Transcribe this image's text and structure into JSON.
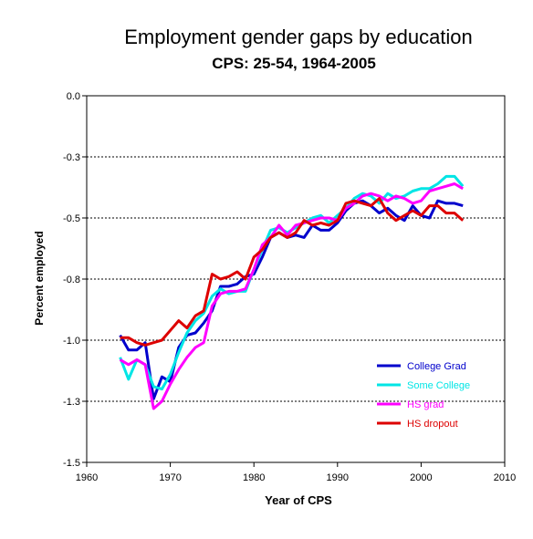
{
  "chart_data": {
    "type": "line",
    "title": "Employment gender gaps by education",
    "subtitle": "CPS: 25-54, 1964-2005",
    "xlabel": "Year of CPS",
    "ylabel": "Percent employed",
    "xlim": [
      1960,
      2010
    ],
    "ylim": [
      -1.5,
      0.0
    ],
    "x_ticks": [
      1960,
      1970,
      1980,
      1990,
      2000,
      2010
    ],
    "x_tick_labels": [
      "1960",
      "1970",
      "1980",
      "1990",
      "2000",
      "2010"
    ],
    "y_ticks": [
      0.0,
      -0.25,
      -0.5,
      -0.75,
      -1.0,
      -1.25,
      -1.5
    ],
    "y_tick_labels": [
      "0.0",
      "-0.3",
      "-0.5",
      "-0.8",
      "-1.0",
      "-1.3",
      "-1.5"
    ],
    "grid": "horizontal dashed",
    "legend_position": "bottom-right",
    "x": [
      1964,
      1965,
      1966,
      1967,
      1968,
      1969,
      1970,
      1971,
      1972,
      1973,
      1974,
      1975,
      1976,
      1977,
      1978,
      1979,
      1980,
      1981,
      1982,
      1983,
      1984,
      1985,
      1986,
      1987,
      1988,
      1989,
      1990,
      1991,
      1992,
      1993,
      1994,
      1995,
      1996,
      1997,
      1998,
      1999,
      2000,
      2001,
      2002,
      2003,
      2004,
      2005
    ],
    "series": [
      {
        "name": "College Grad",
        "color": "#0000cc",
        "values": [
          -0.98,
          -1.04,
          -1.04,
          -1.01,
          -1.24,
          -1.15,
          -1.17,
          -1.03,
          -0.98,
          -0.97,
          -0.93,
          -0.88,
          -0.78,
          -0.78,
          -0.77,
          -0.74,
          -0.73,
          -0.66,
          -0.58,
          -0.56,
          -0.58,
          -0.57,
          -0.58,
          -0.53,
          -0.55,
          -0.55,
          -0.52,
          -0.47,
          -0.44,
          -0.43,
          -0.45,
          -0.48,
          -0.46,
          -0.49,
          -0.51,
          -0.45,
          -0.49,
          -0.5,
          -0.43,
          -0.44,
          -0.44,
          -0.45
        ]
      },
      {
        "name": "Some College",
        "color": "#00e5e5",
        "values": [
          -1.07,
          -1.16,
          -1.08,
          -1.1,
          -1.19,
          -1.2,
          -1.14,
          -1.05,
          -0.97,
          -0.92,
          -0.89,
          -0.82,
          -0.79,
          -0.81,
          -0.8,
          -0.8,
          -0.71,
          -0.63,
          -0.55,
          -0.54,
          -0.56,
          -0.54,
          -0.52,
          -0.5,
          -0.49,
          -0.52,
          -0.49,
          -0.46,
          -0.42,
          -0.4,
          -0.41,
          -0.44,
          -0.4,
          -0.42,
          -0.41,
          -0.39,
          -0.38,
          -0.38,
          -0.36,
          -0.33,
          -0.33,
          -0.37
        ]
      },
      {
        "name": "HS grad",
        "color": "#ff00ff",
        "values": [
          -1.08,
          -1.1,
          -1.08,
          -1.1,
          -1.28,
          -1.25,
          -1.18,
          -1.12,
          -1.07,
          -1.03,
          -1.01,
          -0.86,
          -0.81,
          -0.8,
          -0.8,
          -0.79,
          -0.71,
          -0.61,
          -0.58,
          -0.53,
          -0.57,
          -0.53,
          -0.52,
          -0.51,
          -0.5,
          -0.5,
          -0.51,
          -0.46,
          -0.44,
          -0.41,
          -0.4,
          -0.41,
          -0.43,
          -0.41,
          -0.42,
          -0.44,
          -0.43,
          -0.39,
          -0.38,
          -0.37,
          -0.36,
          -0.38
        ]
      },
      {
        "name": "HS dropout",
        "color": "#dd0000",
        "values": [
          -0.99,
          -0.99,
          -1.01,
          -1.02,
          -1.01,
          -1.0,
          -0.96,
          -0.92,
          -0.95,
          -0.9,
          -0.88,
          -0.73,
          -0.75,
          -0.74,
          -0.72,
          -0.75,
          -0.66,
          -0.63,
          -0.58,
          -0.56,
          -0.58,
          -0.56,
          -0.51,
          -0.53,
          -0.52,
          -0.53,
          -0.51,
          -0.44,
          -0.43,
          -0.44,
          -0.45,
          -0.42,
          -0.48,
          -0.51,
          -0.49,
          -0.47,
          -0.49,
          -0.45,
          -0.45,
          -0.48,
          -0.48,
          -0.51
        ]
      }
    ]
  }
}
